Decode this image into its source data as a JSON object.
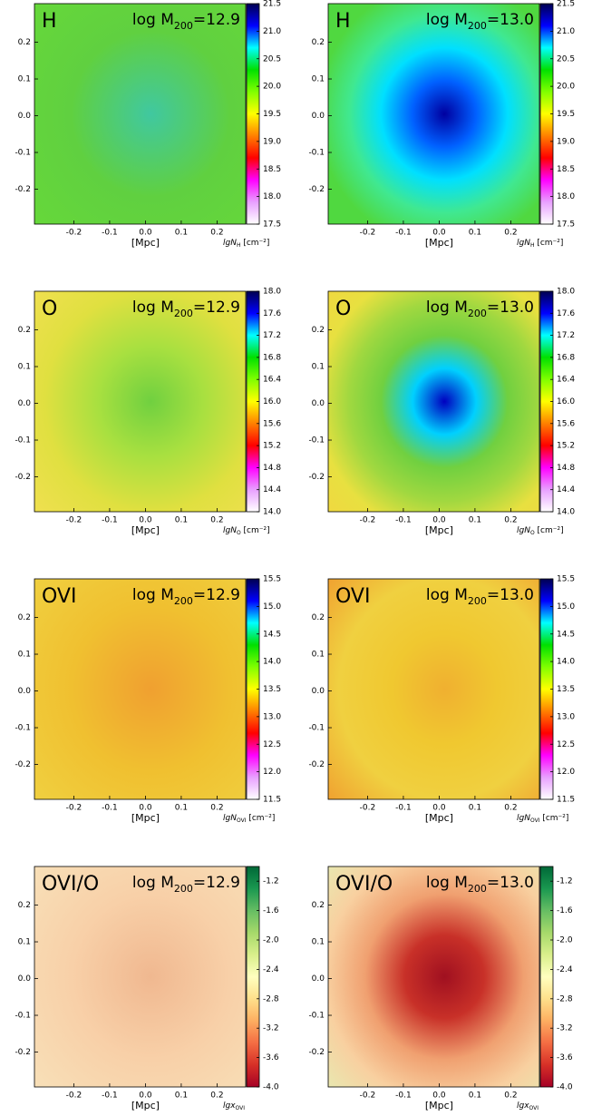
{
  "chart_data": [
    {
      "type": "map",
      "title": "H",
      "mass_label": {
        "prefix": "log M",
        "sub": "200",
        "rest": "=12.9"
      },
      "xlabel": "[Mpc]",
      "colorbar_label": {
        "prefix": "lgN",
        "sub": "H",
        "unit": " [cm⁻²]"
      },
      "xlim": [
        -0.31,
        0.28
      ],
      "ylim": [
        -0.295,
        0.305
      ],
      "xticks": [
        -0.2,
        -0.1,
        {
          "value": 0,
          "label": "0.0"
        },
        0.1,
        0.2
      ],
      "yticks": [
        -0.2,
        -0.1,
        {
          "value": 0,
          "label": "0.0"
        },
        0.1,
        0.2
      ],
      "clim": [
        17.5,
        21.5
      ],
      "cticks": [
        17.5,
        {
          "value": 18,
          "label": "18.0"
        },
        18.5,
        {
          "value": 19,
          "label": "19.0"
        },
        19.5,
        {
          "value": 20,
          "label": "20.0"
        },
        20.5,
        {
          "value": 21,
          "label": "21.0"
        },
        21.5
      ],
      "colormap": [
        "#ffffff",
        "#e8a0ff",
        "#ff00ff",
        "#ff0000",
        "#ff8000",
        "#ffff00",
        "#80ff00",
        "#00e000",
        "#00ffff",
        "#0000ff",
        "#000050"
      ],
      "map_colors": [
        "#40c8a0",
        "#60d040",
        "#66d83a"
      ]
    },
    {
      "type": "map",
      "title": "H",
      "mass_label": {
        "prefix": "log M",
        "sub": "200",
        "rest": "=13.0"
      },
      "xlabel": "[Mpc]",
      "colorbar_label": {
        "prefix": "lgN",
        "sub": "H",
        "unit": " [cm⁻²]"
      },
      "xlim": [
        -0.31,
        0.28
      ],
      "ylim": [
        -0.295,
        0.305
      ],
      "xticks": [
        -0.2,
        -0.1,
        {
          "value": 0,
          "label": "0.0"
        },
        0.1,
        0.2
      ],
      "yticks": [
        -0.2,
        -0.1,
        {
          "value": 0,
          "label": "0.0"
        },
        0.1,
        0.2
      ],
      "clim": [
        17.5,
        21.5
      ],
      "cticks": [
        17.5,
        {
          "value": 18,
          "label": "18.0"
        },
        18.5,
        {
          "value": 19,
          "label": "19.0"
        },
        19.5,
        {
          "value": 20,
          "label": "20.0"
        },
        20.5,
        {
          "value": 21,
          "label": "21.0"
        },
        21.5
      ],
      "colormap": [
        "#ffffff",
        "#e8a0ff",
        "#ff00ff",
        "#ff0000",
        "#ff8000",
        "#ffff00",
        "#80ff00",
        "#00e000",
        "#00ffff",
        "#0000ff",
        "#000050"
      ],
      "map_colors": [
        "#0000a0",
        "#0060ff",
        "#00e0ff",
        "#40e890",
        "#50d840",
        "#50d840"
      ]
    },
    {
      "type": "map",
      "title": "O",
      "mass_label": {
        "prefix": "log M",
        "sub": "200",
        "rest": "=12.9"
      },
      "xlabel": "[Mpc]",
      "colorbar_label": {
        "prefix": "lgN",
        "sub": "O",
        "unit": " [cm⁻²]"
      },
      "xlim": [
        -0.31,
        0.28
      ],
      "ylim": [
        -0.295,
        0.305
      ],
      "xticks": [
        -0.2,
        -0.1,
        {
          "value": 0,
          "label": "0.0"
        },
        0.1,
        0.2
      ],
      "yticks": [
        -0.2,
        -0.1,
        {
          "value": 0,
          "label": "0.0"
        },
        0.1,
        0.2
      ],
      "clim": [
        14.0,
        18.0
      ],
      "cticks": [
        {
          "value": 14,
          "label": "14.0"
        },
        14.4,
        14.8,
        15.2,
        15.6,
        {
          "value": 16,
          "label": "16.0"
        },
        16.4,
        16.8,
        17.2,
        17.6,
        {
          "value": 18,
          "label": "18.0"
        }
      ],
      "colormap": [
        "#ffffff",
        "#e8a0ff",
        "#ff00ff",
        "#ff0000",
        "#ff8000",
        "#ffff00",
        "#80ff00",
        "#00e000",
        "#00ffff",
        "#0000ff",
        "#000050"
      ],
      "map_colors": [
        "#70d040",
        "#a8e040",
        "#e0e040",
        "#f0e050"
      ]
    },
    {
      "type": "map",
      "title": "O",
      "mass_label": {
        "prefix": "log M",
        "sub": "200",
        "rest": "=13.0"
      },
      "xlabel": "[Mpc]",
      "colorbar_label": {
        "prefix": "lgN",
        "sub": "O",
        "unit": " [cm⁻²]"
      },
      "xlim": [
        -0.31,
        0.28
      ],
      "ylim": [
        -0.295,
        0.305
      ],
      "xticks": [
        -0.2,
        -0.1,
        {
          "value": 0,
          "label": "0.0"
        },
        0.1,
        0.2
      ],
      "yticks": [
        -0.2,
        -0.1,
        {
          "value": 0,
          "label": "0.0"
        },
        0.1,
        0.2
      ],
      "clim": [
        14.0,
        18.0
      ],
      "cticks": [
        {
          "value": 14,
          "label": "14.0"
        },
        14.4,
        14.8,
        15.2,
        15.6,
        {
          "value": 16,
          "label": "16.0"
        },
        16.4,
        16.8,
        17.2,
        17.6,
        {
          "value": 18,
          "label": "18.0"
        }
      ],
      "colormap": [
        "#ffffff",
        "#e8a0ff",
        "#ff00ff",
        "#ff0000",
        "#ff8000",
        "#ffff00",
        "#80ff00",
        "#00e000",
        "#00ffff",
        "#0000ff",
        "#000050"
      ],
      "map_colors": [
        "#0000c0",
        "#00d0ff",
        "#70d040",
        "#a0d840",
        "#e8e040",
        "#f0d840"
      ]
    },
    {
      "type": "map",
      "title": "OVI",
      "mass_label": {
        "prefix": "log M",
        "sub": "200",
        "rest": "=12.9"
      },
      "xlabel": "[Mpc]",
      "colorbar_label": {
        "prefix": "lgN",
        "sub": "OVI",
        "unit": " [cm⁻²]"
      },
      "xlim": [
        -0.31,
        0.28
      ],
      "ylim": [
        -0.295,
        0.305
      ],
      "xticks": [
        -0.2,
        -0.1,
        {
          "value": 0,
          "label": "0.0"
        },
        0.1,
        0.2
      ],
      "yticks": [
        -0.2,
        -0.1,
        {
          "value": 0,
          "label": "0.0"
        },
        0.1,
        0.2
      ],
      "clim": [
        11.5,
        15.5
      ],
      "cticks": [
        11.5,
        {
          "value": 12,
          "label": "12.0"
        },
        12.5,
        {
          "value": 13,
          "label": "13.0"
        },
        13.5,
        {
          "value": 14,
          "label": "14.0"
        },
        14.5,
        {
          "value": 15,
          "label": "15.0"
        },
        15.5
      ],
      "colormap": [
        "#ffffff",
        "#e8a0ff",
        "#ff00ff",
        "#ff0000",
        "#ff8000",
        "#ffff00",
        "#80ff00",
        "#00e000",
        "#00ffff",
        "#0000ff",
        "#000050"
      ],
      "map_colors": [
        "#f0a030",
        "#f0c030",
        "#f0d040"
      ]
    },
    {
      "type": "map",
      "title": "OVI",
      "mass_label": {
        "prefix": "log M",
        "sub": "200",
        "rest": "=13.0"
      },
      "xlabel": "[Mpc]",
      "colorbar_label": {
        "prefix": "lgN",
        "sub": "OVI",
        "unit": " [cm⁻²]"
      },
      "xlim": [
        -0.31,
        0.28
      ],
      "ylim": [
        -0.295,
        0.305
      ],
      "xticks": [
        -0.2,
        -0.1,
        {
          "value": 0,
          "label": "0.0"
        },
        0.1,
        0.2
      ],
      "yticks": [
        -0.2,
        -0.1,
        {
          "value": 0,
          "label": "0.0"
        },
        0.1,
        0.2
      ],
      "clim": [
        11.5,
        15.5
      ],
      "cticks": [
        11.5,
        {
          "value": 12,
          "label": "12.0"
        },
        12.5,
        {
          "value": 13,
          "label": "13.0"
        },
        13.5,
        {
          "value": 14,
          "label": "14.0"
        },
        14.5,
        {
          "value": 15,
          "label": "15.0"
        },
        15.5
      ],
      "colormap": [
        "#ffffff",
        "#e8a0ff",
        "#ff00ff",
        "#ff0000",
        "#ff8000",
        "#ffff00",
        "#80ff00",
        "#00e000",
        "#00ffff",
        "#0000ff",
        "#000050"
      ],
      "map_colors": [
        "#f0b030",
        "#f0c830",
        "#f0d040",
        "#f0a030"
      ]
    },
    {
      "type": "map",
      "title": "OVI/O",
      "mass_label": {
        "prefix": "log M",
        "sub": "200",
        "rest": "=12.9"
      },
      "xlabel": "[Mpc]",
      "colorbar_label": {
        "prefix": "lgx",
        "sub": "OVI"
      },
      "xlim": [
        -0.31,
        0.28
      ],
      "ylim": [
        -0.295,
        0.305
      ],
      "xticks": [
        -0.2,
        -0.1,
        {
          "value": 0,
          "label": "0.0"
        },
        0.1,
        0.2
      ],
      "yticks": [
        -0.2,
        -0.1,
        {
          "value": 0,
          "label": "0.0"
        },
        0.1,
        0.2
      ],
      "clim": [
        -4.0,
        -1.0
      ],
      "cticks": [
        {
          "value": -4,
          "label": "-4.0"
        },
        -3.6,
        -3.2,
        -2.8,
        -2.4,
        {
          "value": -2,
          "label": "-2.0"
        },
        -1.6,
        -1.2
      ],
      "colormap": [
        "#a50026",
        "#d73027",
        "#f46d43",
        "#fdae61",
        "#fee08b",
        "#ffffbf",
        "#d9ef8b",
        "#a6d96a",
        "#66bd63",
        "#1a9850",
        "#006837"
      ],
      "map_colors": [
        "#f0b890",
        "#f8d0a8",
        "#f8e0b8"
      ]
    },
    {
      "type": "map",
      "title": "OVI/O",
      "mass_label": {
        "prefix": "log M",
        "sub": "200",
        "rest": "=13.0"
      },
      "xlabel": "[Mpc]",
      "colorbar_label": {
        "prefix": "lgx",
        "sub": "OVI"
      },
      "xlim": [
        -0.31,
        0.28
      ],
      "ylim": [
        -0.295,
        0.305
      ],
      "xticks": [
        -0.2,
        -0.1,
        {
          "value": 0,
          "label": "0.0"
        },
        0.1,
        0.2
      ],
      "yticks": [
        -0.2,
        -0.1,
        {
          "value": 0,
          "label": "0.0"
        },
        0.1,
        0.2
      ],
      "clim": [
        -4.0,
        -1.0
      ],
      "cticks": [
        {
          "value": -4,
          "label": "-4.0"
        },
        -3.6,
        -3.2,
        -2.8,
        -2.4,
        {
          "value": -2,
          "label": "-2.0"
        },
        -1.6,
        -1.2
      ],
      "colormap": [
        "#a50026",
        "#d73027",
        "#f46d43",
        "#fdae61",
        "#fee08b",
        "#ffffbf",
        "#d9ef8b",
        "#a6d96a",
        "#66bd63",
        "#1a9850",
        "#006837"
      ],
      "map_colors": [
        "#a01020",
        "#c83028",
        "#f0a070",
        "#f8d0a0",
        "#e8e8b0"
      ]
    }
  ]
}
